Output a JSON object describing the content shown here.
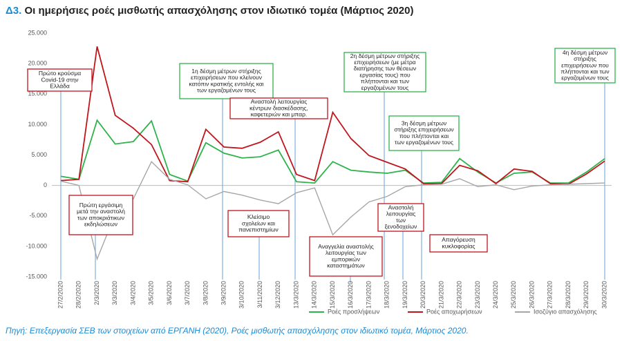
{
  "chart_data": {
    "type": "line",
    "figure_label": "Δ3.",
    "title": "Οι ημερήσιες ροές μισθωτής απασχόλησης στον ιδιωτικό τομέα (Μάρτιος 2020)",
    "source": "Πηγή: Επεξεργασία ΣΕΒ των στοιχείων από ΕΡΓΑΝΗ (2020), Ροές μισθωτής απασχόλησης στον ιδιωτικό τομέα, Μάρτιος 2020.",
    "categories": [
      "27/2/2020",
      "28/2/2020",
      "2/3/2020",
      "3/3/2020",
      "3/4/2020",
      "3/5/2020",
      "3/6/2020",
      "3/7/2020",
      "3/8/2020",
      "3/9/2020",
      "3/10/2020",
      "3/11/2020",
      "3/12/2020",
      "13/3/2020",
      "14/3/2020",
      "15/3/2020",
      "16/3/2020",
      "17/3/2020",
      "18/3/2020",
      "19/3/2020",
      "20/3/2020",
      "21/3/2020",
      "22/3/2020",
      "23/3/2020",
      "24/3/2020",
      "25/3/2020",
      "26/3/2020",
      "27/3/2020",
      "28/3/2020",
      "29/3/2020",
      "30/3/2020"
    ],
    "series": [
      {
        "name": "Ροές προσλήψεων",
        "color": "#2db34a",
        "values": [
          1500,
          1000,
          10700,
          6800,
          7200,
          10600,
          1800,
          700,
          7000,
          5300,
          4500,
          4700,
          5800,
          600,
          400,
          3900,
          2500,
          2200,
          2000,
          2500,
          400,
          500,
          4400,
          2200,
          400,
          2000,
          2200,
          400,
          400,
          2200,
          4400
        ]
      },
      {
        "name": "Ροές αποχωρήσεων",
        "color": "#c0141b",
        "values": [
          800,
          1000,
          22800,
          11500,
          9400,
          6700,
          800,
          600,
          9200,
          6300,
          6100,
          7100,
          8800,
          1800,
          800,
          12000,
          7700,
          4900,
          3800,
          2700,
          300,
          300,
          3300,
          2400,
          300,
          2700,
          2300,
          300,
          200,
          1900,
          4000
        ]
      },
      {
        "name": "Ισοζύγιο απασχόλησης",
        "color": "#a6a6a6",
        "values": [
          700,
          0,
          -12100,
          -4700,
          -2200,
          3900,
          1000,
          100,
          -2200,
          -1000,
          -1600,
          -2400,
          -3000,
          -1200,
          -400,
          -8100,
          -5200,
          -2700,
          -1800,
          -200,
          100,
          200,
          1100,
          -200,
          100,
          -700,
          -100,
          100,
          200,
          300,
          400
        ]
      }
    ],
    "ylim": [
      -15000,
      25000
    ],
    "yticks": [
      {
        "value": 25000,
        "label": "25.000"
      },
      {
        "value": 20000,
        "label": "20.000"
      },
      {
        "value": 15000,
        "label": "15.000"
      },
      {
        "value": 10000,
        "label": "10.000"
      },
      {
        "value": 5000,
        "label": "5.000"
      },
      0,
      {
        "value": -5000,
        "label": "-5.000"
      },
      {
        "value": -10000,
        "label": "-10.000"
      },
      {
        "value": -15000,
        "label": "-15.000"
      }
    ],
    "annotations": [
      [
        "Πρώτο κρούσμα",
        "Covid-19 στην",
        "Ελλάδα"
      ],
      [
        "Πρώτη εργάσιμη",
        "μετά την αναστολή",
        "των αποκριάτικων",
        "εκδηλώσεων"
      ],
      [
        "1η δέσμη μέτρων στήριξης",
        "επιχειρήσεων που κλείνουν",
        "κατόπιν κρατικής εντολής και",
        "των εργαζομένων τους"
      ],
      [
        "Αναστολή λειτουργίας",
        "κέντρων διασκέδασης,",
        "καφετεριών και μπαρ."
      ],
      [
        "Κλείσιμο",
        "σχολείων και",
        "πανεπιστημίων"
      ],
      [
        "2η δέσμη μέτρων στήριξης",
        "επιχειρήσεων (με μέτρα",
        "διατήρησης των θέσεων",
        "εργασίας τους) που",
        "πλήττονται και των",
        "εργαζομένων τους"
      ],
      [
        "Αναγγελία αναστολής",
        "λειτουργίας των",
        "εμπορικών",
        "καταστημάτων"
      ],
      [
        "3η δέσμη μέτρων",
        "στήριξης επιχειρήσεων",
        "που πλήττονται και",
        "των εργαζομένων τους"
      ],
      [
        "Αναστολή",
        "λειτουργίας",
        "των",
        "ξενοδοχείων"
      ],
      [
        "Απαγόρευση",
        "κυκλοφορίας"
      ],
      [
        "4η δέσμη μέτρων",
        "στήριξης",
        "επιχειρήσεων που",
        "πλήττονται και των",
        "εργαζομένων τους"
      ]
    ]
  }
}
